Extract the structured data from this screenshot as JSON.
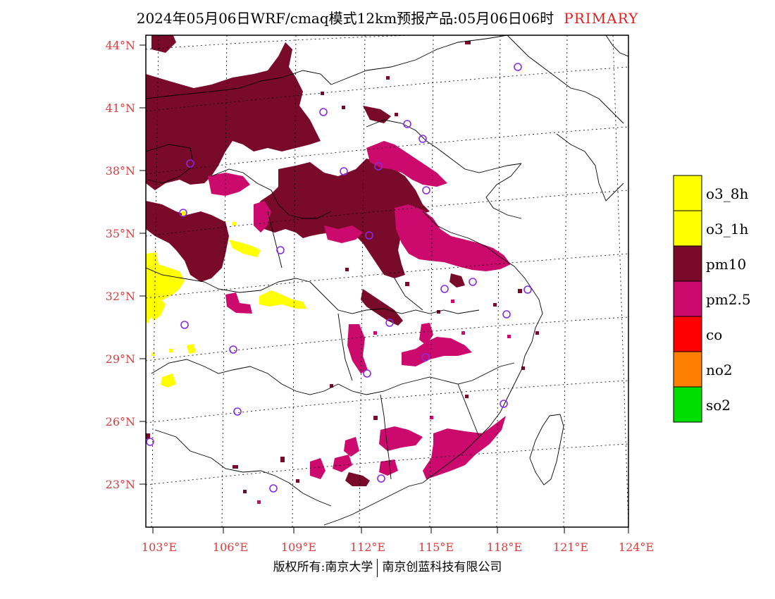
{
  "title": {
    "main": "2024年05月06日WRF/cmaq模式12km预报产品:05月06日06时",
    "tag": "PRIMARY"
  },
  "lat_labels": [
    "44°N",
    "41°N",
    "38°N",
    "35°N",
    "32°N",
    "29°N",
    "26°N",
    "23°N"
  ],
  "lon_labels": [
    "103°E",
    "106°E",
    "109°E",
    "112°E",
    "115°E",
    "118°E",
    "121°E",
    "124°E"
  ],
  "legend": [
    {
      "label": "o3_8h",
      "color": "#ffff00"
    },
    {
      "label": "o3_1h",
      "color": "#ffff00"
    },
    {
      "label": "pm10",
      "color": "#7a0a2a"
    },
    {
      "label": "pm2.5",
      "color": "#cc0a6e"
    },
    {
      "label": "co",
      "color": "#ff0000"
    },
    {
      "label": "no2",
      "color": "#ff8000"
    },
    {
      "label": "so2",
      "color": "#00dd00"
    }
  ],
  "colors": {
    "label_red": "#e03a3a",
    "pm10": "#7a0a2a",
    "pm25": "#cc0a6e",
    "o3": "#ffff00",
    "station": "#8a2be2"
  },
  "footer": {
    "left": "版权所有:南京大学",
    "right": "南京创蓝科技有限公司"
  }
}
